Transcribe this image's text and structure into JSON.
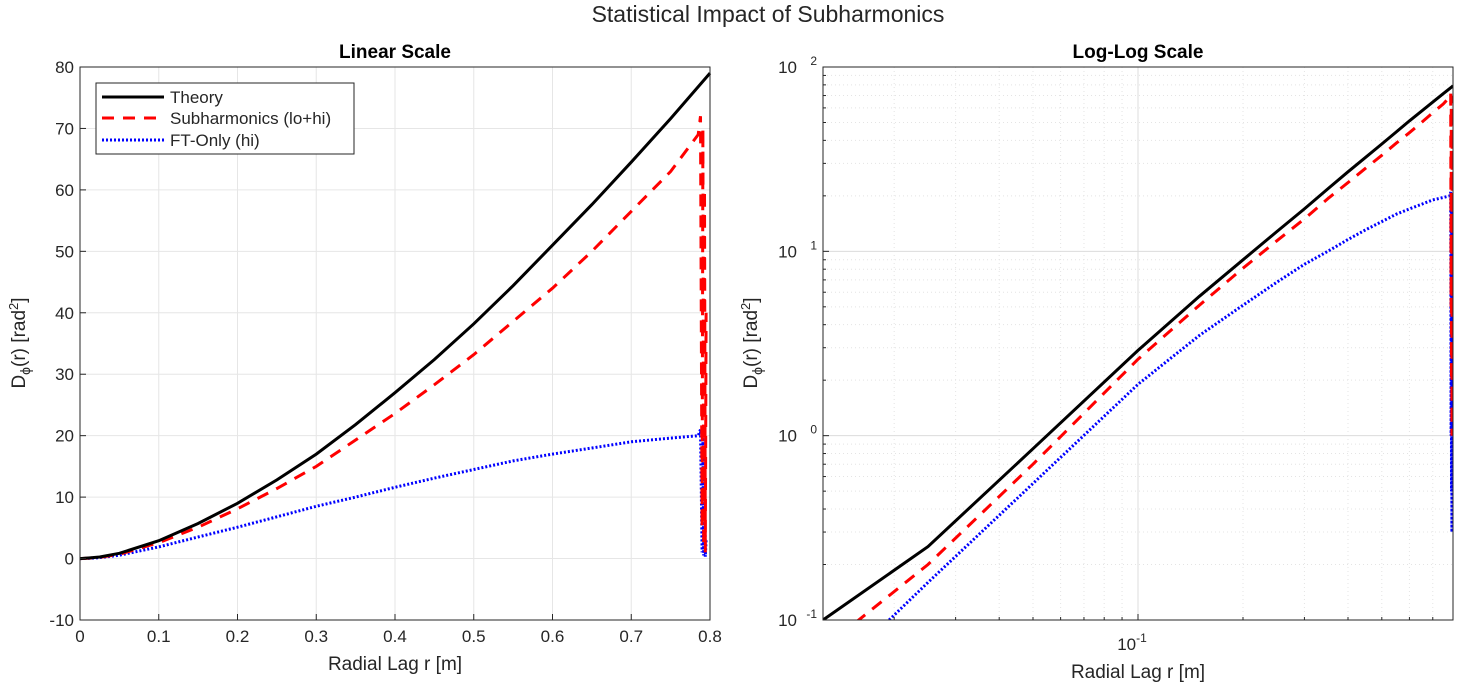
{
  "suptitle": "Statistical Impact of Subharmonics",
  "colors": {
    "theory": "#000000",
    "subharmonics": "#ff0000",
    "ft_only": "#0000ff",
    "grid": "#e6e6e6",
    "axis": "#262626"
  },
  "chart_data": [
    {
      "type": "line",
      "title": "Linear Scale",
      "xlabel": "Radial Lag r [m]",
      "ylabel": {
        "base": "D",
        "sub": "ϕ",
        "mid": "(r) [rad",
        "sup": "2",
        "end": "]"
      },
      "xlim": [
        0,
        0.8
      ],
      "ylim": [
        -10,
        80
      ],
      "xscale": "linear",
      "yscale": "linear",
      "grid": true,
      "legend_placement": "top-left",
      "xticks": [
        "0",
        "0.1",
        "0.2",
        "0.3",
        "0.4",
        "0.5",
        "0.6",
        "0.7",
        "0.8"
      ],
      "yticks": [
        "-10",
        "0",
        "10",
        "20",
        "30",
        "40",
        "50",
        "60",
        "70",
        "80"
      ],
      "series": [
        {
          "name": "Theory",
          "style": "solid",
          "color": "#000000",
          "x": [
            0,
            0.0125,
            0.025,
            0.05,
            0.1,
            0.15,
            0.2,
            0.25,
            0.3,
            0.35,
            0.4,
            0.45,
            0.5,
            0.55,
            0.6,
            0.65,
            0.7,
            0.75,
            0.8
          ],
          "y": [
            0,
            0.1,
            0.25,
            0.85,
            2.9,
            5.7,
            9,
            12.8,
            17,
            21.8,
            27,
            32.4,
            38.2,
            44.4,
            51,
            57.6,
            64.5,
            71.6,
            79
          ]
        },
        {
          "name": "Subharmonics (lo+hi)",
          "style": "dashed",
          "color": "#ff0000",
          "x": [
            0,
            0.0125,
            0.025,
            0.05,
            0.1,
            0.15,
            0.2,
            0.25,
            0.3,
            0.35,
            0.4,
            0.45,
            0.5,
            0.55,
            0.6,
            0.65,
            0.7,
            0.75,
            0.785,
            0.788,
            0.79,
            0.791,
            0.792,
            0.793,
            0.794,
            0.795
          ],
          "y": [
            0,
            0.07,
            0.2,
            0.7,
            2.6,
            5.1,
            8.1,
            11.4,
            15,
            19.3,
            23.6,
            28.3,
            33.2,
            38.6,
            44,
            50,
            56.5,
            63,
            69,
            72,
            5,
            70,
            2,
            60,
            1,
            40
          ]
        },
        {
          "name": "FT-Only (hi)",
          "style": "dotted",
          "color": "#0000ff",
          "x": [
            0,
            0.0125,
            0.025,
            0.05,
            0.1,
            0.15,
            0.2,
            0.25,
            0.3,
            0.35,
            0.4,
            0.45,
            0.5,
            0.55,
            0.6,
            0.65,
            0.7,
            0.75,
            0.785,
            0.788,
            0.79,
            0.791,
            0.792,
            0.793,
            0.794,
            0.795
          ],
          "y": [
            0,
            0.045,
            0.16,
            0.55,
            1.9,
            3.5,
            5.1,
            6.8,
            8.5,
            10,
            11.6,
            13.1,
            14.5,
            15.9,
            17,
            18,
            19,
            19.6,
            20,
            21,
            1,
            20,
            0.5,
            18,
            0.3,
            3
          ]
        }
      ]
    },
    {
      "type": "line",
      "title": "Log-Log Scale",
      "xlabel": "Radial Lag r [m]",
      "ylabel": {
        "base": "D",
        "sub": "ϕ",
        "mid": "(r) [rad",
        "sup": "2",
        "end": "]"
      },
      "xlim": [
        0.0125,
        0.8
      ],
      "ylim": [
        0.1,
        100
      ],
      "xscale": "log",
      "yscale": "log",
      "grid": true,
      "xticks": [
        {
          "base": "10",
          "exp": "-1",
          "value": 0.1
        }
      ],
      "yticks": [
        {
          "base": "10",
          "exp": "-1",
          "value": 0.1
        },
        {
          "base": "10",
          "exp": "0",
          "value": 1
        },
        {
          "base": "10",
          "exp": "1",
          "value": 10
        },
        {
          "base": "10",
          "exp": "2",
          "value": 100
        }
      ],
      "series_same_as": "Linear Scale"
    }
  ]
}
